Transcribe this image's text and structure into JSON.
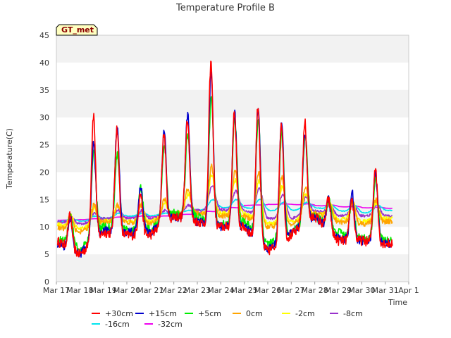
{
  "chart_data": {
    "type": "line",
    "title": "Temperature Profile B",
    "xlabel": "Time",
    "ylabel": "Temperature(C)",
    "badge": "GT_met",
    "ylim": [
      0,
      45
    ],
    "yticks": [
      0,
      5,
      10,
      15,
      20,
      25,
      30,
      35,
      40,
      45
    ],
    "xlim": [
      "2024-03-17",
      "2024-04-01"
    ],
    "xtick_labels": [
      "Mar 17",
      "Mar 18",
      "Mar 19",
      "Mar 20",
      "Mar 21",
      "Mar 22",
      "Mar 23",
      "Mar 24",
      "Mar 25",
      "Mar 26",
      "Mar 27",
      "Mar 28",
      "Mar 29",
      "Mar 30",
      "Mar 31",
      "Apr 1"
    ],
    "grid": "horizontal bands",
    "legend_position": "bottom",
    "days": [
      "2024-03-17",
      "2024-03-18",
      "2024-03-19",
      "2024-03-20",
      "2024-03-21",
      "2024-03-22",
      "2024-03-23",
      "2024-03-24",
      "2024-03-25",
      "2024-03-26",
      "2024-03-27",
      "2024-03-28",
      "2024-03-29",
      "2024-03-30",
      "2024-03-31"
    ],
    "series": [
      {
        "name": "+30cm",
        "color": "#ff0000",
        "depth": 0,
        "lag": 0,
        "daily_max": [
          12,
          30.5,
          28,
          16,
          27,
          30,
          40,
          31,
          32,
          29,
          29,
          15,
          15,
          21,
          19
        ],
        "daily_min": [
          7.5,
          5,
          9,
          8.5,
          8.5,
          12,
          11,
          10,
          10,
          5.5,
          8.5,
          12,
          7.5,
          7.5,
          7
        ]
      },
      {
        "name": "+15cm",
        "color": "#0000cc",
        "depth": 0.05,
        "lag": 0.02,
        "daily_max": [
          12,
          25.5,
          28.5,
          17.5,
          27.5,
          30.5,
          38,
          31,
          32,
          29,
          27,
          15,
          16.5,
          20,
          19.5
        ],
        "daily_min": [
          7,
          5,
          9.5,
          9,
          9,
          12,
          11,
          10,
          10,
          6,
          9,
          12,
          8,
          7.5,
          7
        ]
      },
      {
        "name": "+5cm",
        "color": "#00ee00",
        "depth": 0.15,
        "lag": 0.05,
        "daily_max": [
          12.5,
          24,
          23.5,
          17,
          25,
          27,
          33.5,
          30,
          30,
          27,
          27,
          15,
          15,
          19,
          17.5
        ],
        "daily_min": [
          8,
          6,
          10,
          9.5,
          9.5,
          12.5,
          12,
          10.5,
          11,
          7,
          9,
          12,
          9,
          8,
          7.5
        ]
      },
      {
        "name": "0cm",
        "color": "#ffa500",
        "depth": 0.45,
        "lag": 0.09,
        "daily_max": [
          12,
          14,
          14,
          14,
          15,
          17,
          21,
          20,
          20,
          19,
          17,
          14.5,
          14.5,
          15,
          15
        ],
        "daily_min": [
          10,
          9,
          11,
          11,
          10.5,
          12.5,
          12.5,
          12,
          12,
          10,
          10.5,
          12.5,
          11,
          10.5,
          11
        ]
      },
      {
        "name": "-2cm",
        "color": "#ffff00",
        "depth": 0.55,
        "lag": 0.12,
        "daily_max": [
          12,
          13.5,
          14,
          14,
          14.5,
          16,
          19.5,
          18.5,
          18.5,
          17.5,
          16,
          14.5,
          14.5,
          14.5,
          14.5
        ],
        "daily_min": [
          10.5,
          9.5,
          11,
          11,
          11,
          12.5,
          12.5,
          12.5,
          12.5,
          10.5,
          11,
          12.5,
          11.5,
          11,
          11.5
        ]
      },
      {
        "name": "-8cm",
        "color": "#9932cc",
        "depth": 0.75,
        "lag": 0.2,
        "daily_max": [
          11.5,
          12.5,
          13,
          13,
          13,
          14,
          17.5,
          16.5,
          17,
          16,
          15.5,
          14,
          14,
          14,
          14
        ],
        "daily_min": [
          11,
          10.5,
          11.5,
          11.5,
          11.5,
          12.5,
          13,
          13,
          13,
          11.5,
          11.5,
          13,
          12,
          12,
          12
        ]
      },
      {
        "name": "-16cm",
        "color": "#00e5ee",
        "depth": 0.9,
        "lag": 0.3,
        "daily_max": [
          11.5,
          12,
          12.5,
          12.5,
          12.5,
          13,
          15,
          15,
          15,
          14.5,
          14.5,
          14,
          14,
          14,
          13.5
        ],
        "daily_min": [
          11,
          11,
          11.5,
          12,
          12,
          12.5,
          13,
          13.5,
          13.5,
          13,
          13,
          13.5,
          13,
          12.5,
          13
        ]
      },
      {
        "name": "-32cm",
        "color": "#ee00ee",
        "depth": 1.0,
        "lag": 0.4,
        "daily_max": [
          11.3,
          11.5,
          11.8,
          12,
          12,
          12.3,
          12.8,
          13.5,
          14,
          14.2,
          14.2,
          14,
          13.8,
          13.6,
          13.5
        ],
        "daily_min": [
          11.2,
          11.3,
          11.5,
          11.8,
          11.8,
          12.1,
          12.5,
          13.3,
          13.9,
          14.1,
          14.1,
          13.9,
          13.7,
          13.5,
          13.4
        ]
      }
    ]
  }
}
